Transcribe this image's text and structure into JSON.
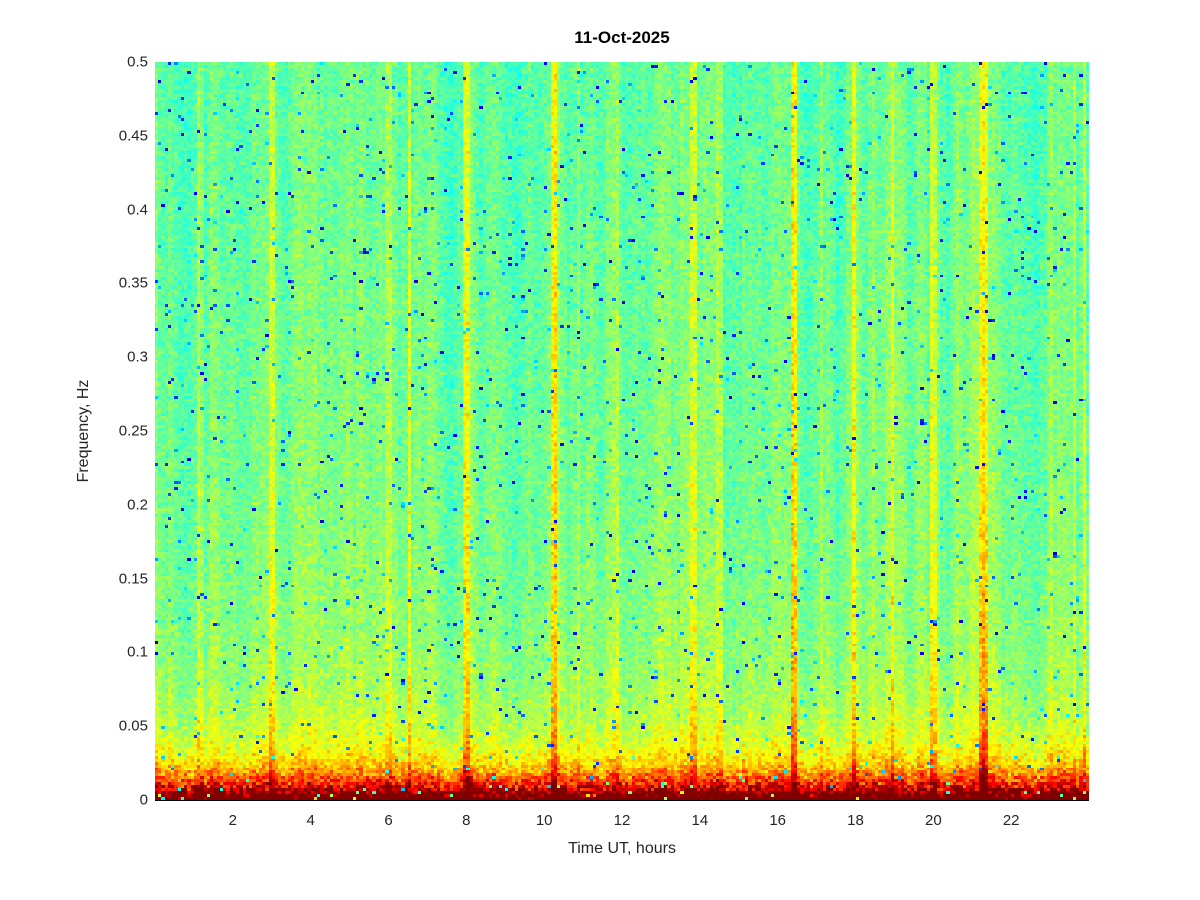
{
  "window": {
    "background_color": "#ffffff"
  },
  "chart_data": {
    "type": "heatmap",
    "title": "11-Oct-2025",
    "xlabel": "Time UT, hours",
    "ylabel": "Frequency, Hz",
    "xlim": [
      0,
      24
    ],
    "ylim": [
      0,
      0.5
    ],
    "xticks": [
      {
        "v": 2,
        "label": "2"
      },
      {
        "v": 4,
        "label": "4"
      },
      {
        "v": 6,
        "label": "6"
      },
      {
        "v": 8,
        "label": "8"
      },
      {
        "v": 10,
        "label": "10"
      },
      {
        "v": 12,
        "label": "12"
      },
      {
        "v": 14,
        "label": "14"
      },
      {
        "v": 16,
        "label": "16"
      },
      {
        "v": 18,
        "label": "18"
      },
      {
        "v": 20,
        "label": "20"
      },
      {
        "v": 22,
        "label": "22"
      }
    ],
    "yticks": [
      {
        "v": 0,
        "label": "0"
      },
      {
        "v": 0.05,
        "label": "0.05"
      },
      {
        "v": 0.1,
        "label": "0.1"
      },
      {
        "v": 0.15,
        "label": "0.15"
      },
      {
        "v": 0.2,
        "label": "0.2"
      },
      {
        "v": 0.25,
        "label": "0.25"
      },
      {
        "v": 0.3,
        "label": "0.3"
      },
      {
        "v": 0.35,
        "label": "0.35"
      },
      {
        "v": 0.4,
        "label": "0.4"
      },
      {
        "v": 0.45,
        "label": "0.45"
      },
      {
        "v": 0.5,
        "label": "0.5"
      }
    ],
    "colormap": "jet",
    "grid_bins": {
      "cols": 288,
      "rows": 250
    },
    "seed": 20251011,
    "noise_field": {
      "base_value": 0.47,
      "cell_noise_amp": 0.065,
      "column_offset_amp": 0.055,
      "vertical_tilt": 0.04,
      "speck_probability": 0.022,
      "speck_value_min": 0.08,
      "speck_value_range": 0.28,
      "speck_band_coupling": 0.55
    },
    "low_freq_band": {
      "amp1": 0.55,
      "scale1_hz": 0.012,
      "amp2": 0.16,
      "scale2_hz": 0.045,
      "jitter_min": 0.7,
      "jitter_range": 0.6
    },
    "interference_streaks": [
      {
        "hour": 1.15,
        "amp": 0.1,
        "halfwidth_hours": 0.06,
        "low_freq_boost": 0.0
      },
      {
        "hour": 3.0,
        "amp": 0.1,
        "halfwidth_hours": 0.06,
        "low_freq_boost": 0.0
      },
      {
        "hour": 5.0,
        "amp": 0.05,
        "halfwidth_hours": 0.05,
        "low_freq_boost": 0.0
      },
      {
        "hour": 6.0,
        "amp": 0.09,
        "halfwidth_hours": 0.05,
        "low_freq_boost": 0.0
      },
      {
        "hour": 6.55,
        "amp": 0.11,
        "halfwidth_hours": 0.06,
        "low_freq_boost": 0.0
      },
      {
        "hour": 8.0,
        "amp": 0.15,
        "halfwidth_hours": 0.07,
        "low_freq_boost": 0.0
      },
      {
        "hour": 10.25,
        "amp": 0.14,
        "halfwidth_hours": 0.07,
        "low_freq_boost": 0.0
      },
      {
        "hour": 10.9,
        "amp": 0.05,
        "halfwidth_hours": 0.05,
        "low_freq_boost": 0.0
      },
      {
        "hour": 11.9,
        "amp": 0.05,
        "halfwidth_hours": 0.05,
        "low_freq_boost": 0.0
      },
      {
        "hour": 13.85,
        "amp": 0.1,
        "halfwidth_hours": 0.06,
        "low_freq_boost": 0.0
      },
      {
        "hour": 14.5,
        "amp": 0.08,
        "halfwidth_hours": 0.05,
        "low_freq_boost": 0.0
      },
      {
        "hour": 16.4,
        "amp": 0.17,
        "halfwidth_hours": 0.08,
        "low_freq_boost": 0.0
      },
      {
        "hour": 17.1,
        "amp": 0.05,
        "halfwidth_hours": 0.05,
        "low_freq_boost": 0.0
      },
      {
        "hour": 17.95,
        "amp": 0.1,
        "halfwidth_hours": 0.06,
        "low_freq_boost": 0.0
      },
      {
        "hour": 18.95,
        "amp": 0.09,
        "halfwidth_hours": 0.06,
        "low_freq_boost": 0.0
      },
      {
        "hour": 20.0,
        "amp": 0.11,
        "halfwidth_hours": 0.1,
        "low_freq_boost": 0.04
      },
      {
        "hour": 21.3,
        "amp": 0.12,
        "halfwidth_hours": 0.12,
        "low_freq_boost": 0.1
      },
      {
        "hour": 23.0,
        "amp": 0.08,
        "halfwidth_hours": 0.05,
        "low_freq_boost": 0.0
      },
      {
        "hour": 23.65,
        "amp": 0.1,
        "halfwidth_hours": 0.05,
        "low_freq_boost": 0.0
      },
      {
        "hour": 23.9,
        "amp": 0.1,
        "halfwidth_hours": 0.04,
        "low_freq_boost": 0.0
      }
    ],
    "colors": {
      "axis_line": "#000000",
      "tick_text": "#262626",
      "title_text": "#000000",
      "background_field_green": "#4df08c",
      "background_field_cyan": "#3ae8c8",
      "streak_yellow": "#f0f020",
      "band_orange": "#ff9500",
      "band_red": "#f71b00",
      "band_dark_red": "#9f0000",
      "speck_blue": "#0a50f0"
    }
  }
}
